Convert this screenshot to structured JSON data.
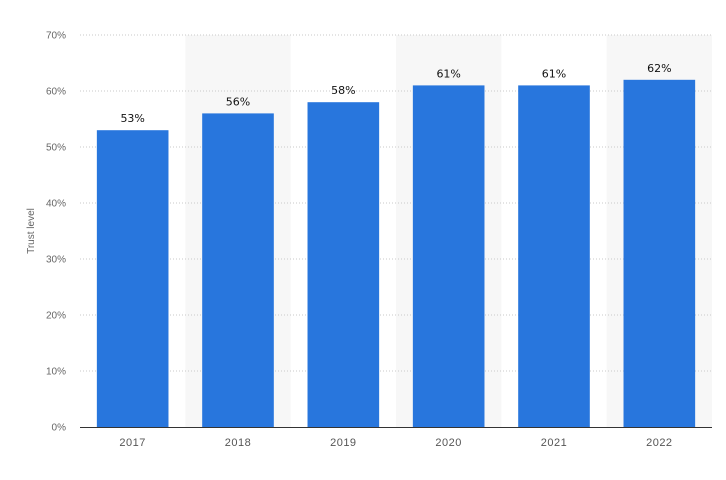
{
  "chart_data": {
    "type": "bar",
    "categories": [
      "2017",
      "2018",
      "2019",
      "2020",
      "2021",
      "2022"
    ],
    "values": [
      53,
      56,
      58,
      61,
      61,
      62
    ],
    "data_labels": [
      "53%",
      "56%",
      "58%",
      "61%",
      "61%",
      "62%"
    ],
    "title": "",
    "xlabel": "",
    "ylabel": "Trust level",
    "ylim": [
      0,
      70
    ],
    "yticks": [
      0,
      10,
      20,
      30,
      40,
      50,
      60,
      70
    ],
    "ytick_labels": [
      "0%",
      "10%",
      "20%",
      "30%",
      "40%",
      "50%",
      "60%",
      "70%"
    ],
    "grid": true,
    "legend": "none",
    "colors": {
      "bar": "#2876dd",
      "band": "#f7f7f7",
      "grid": "#c8c8c8",
      "axis": "#333333"
    }
  }
}
